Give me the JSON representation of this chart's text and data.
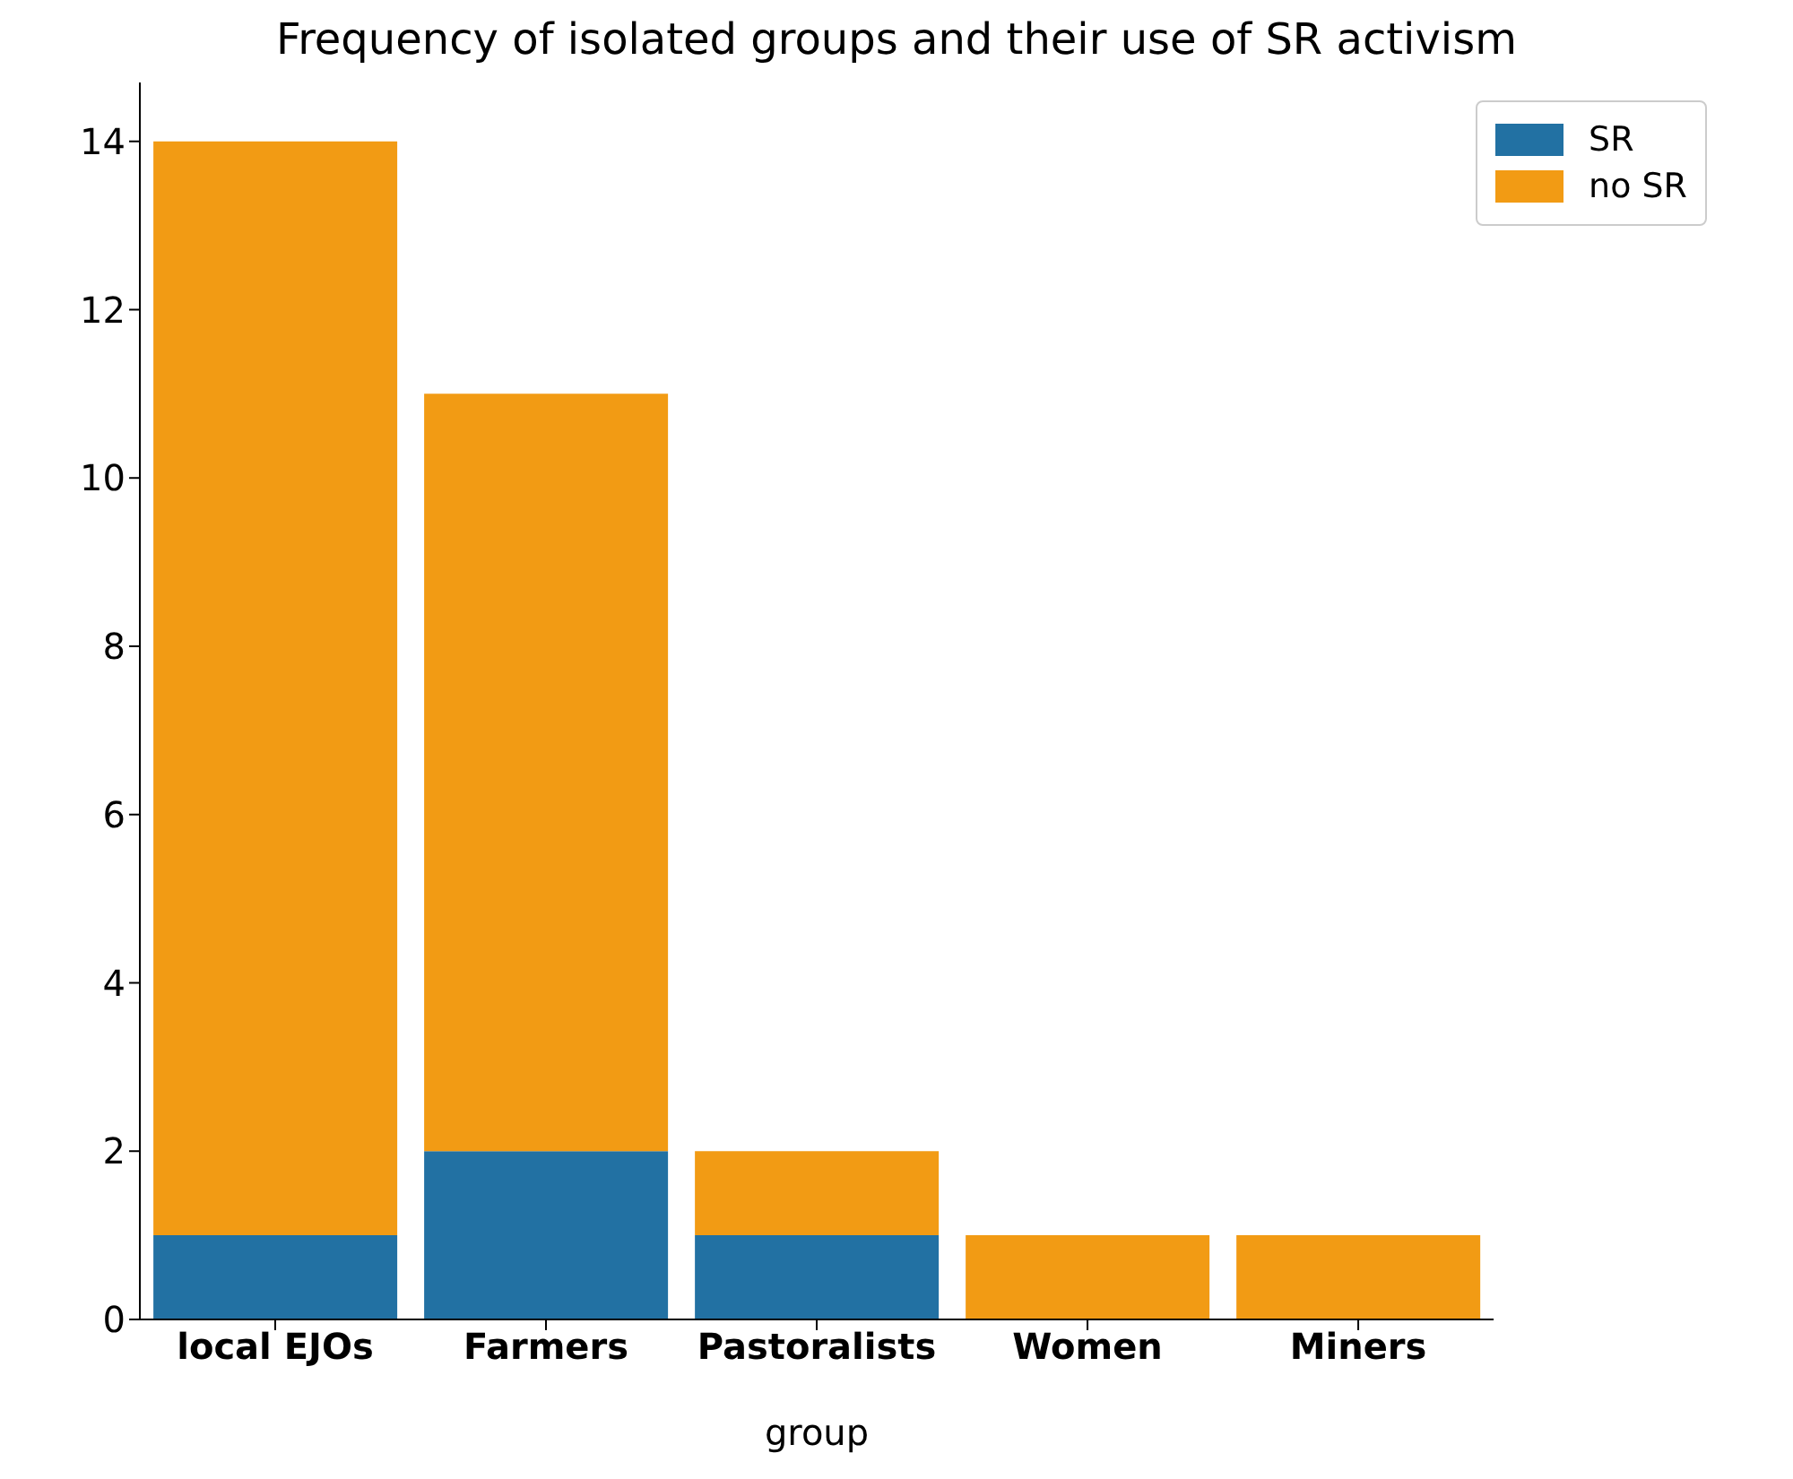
{
  "chart_data": {
    "type": "bar",
    "title": "Frequency of isolated groups and their use of SR activism",
    "xlabel": "group",
    "categories": [
      "local EJOs",
      "Farmers",
      "Pastoralists",
      "Women",
      "Miners"
    ],
    "series": [
      {
        "name": "SR",
        "color": "#2271a3",
        "values": [
          1,
          2,
          1,
          0,
          0
        ]
      },
      {
        "name": "no SR",
        "color": "#f29b14",
        "values": [
          13,
          9,
          1,
          1,
          1
        ]
      }
    ],
    "stacked": true,
    "ylim": [
      0,
      14.7
    ],
    "yticks": [
      0,
      2,
      4,
      6,
      8,
      10,
      12,
      14
    ],
    "grid": false,
    "legend": "top right"
  }
}
